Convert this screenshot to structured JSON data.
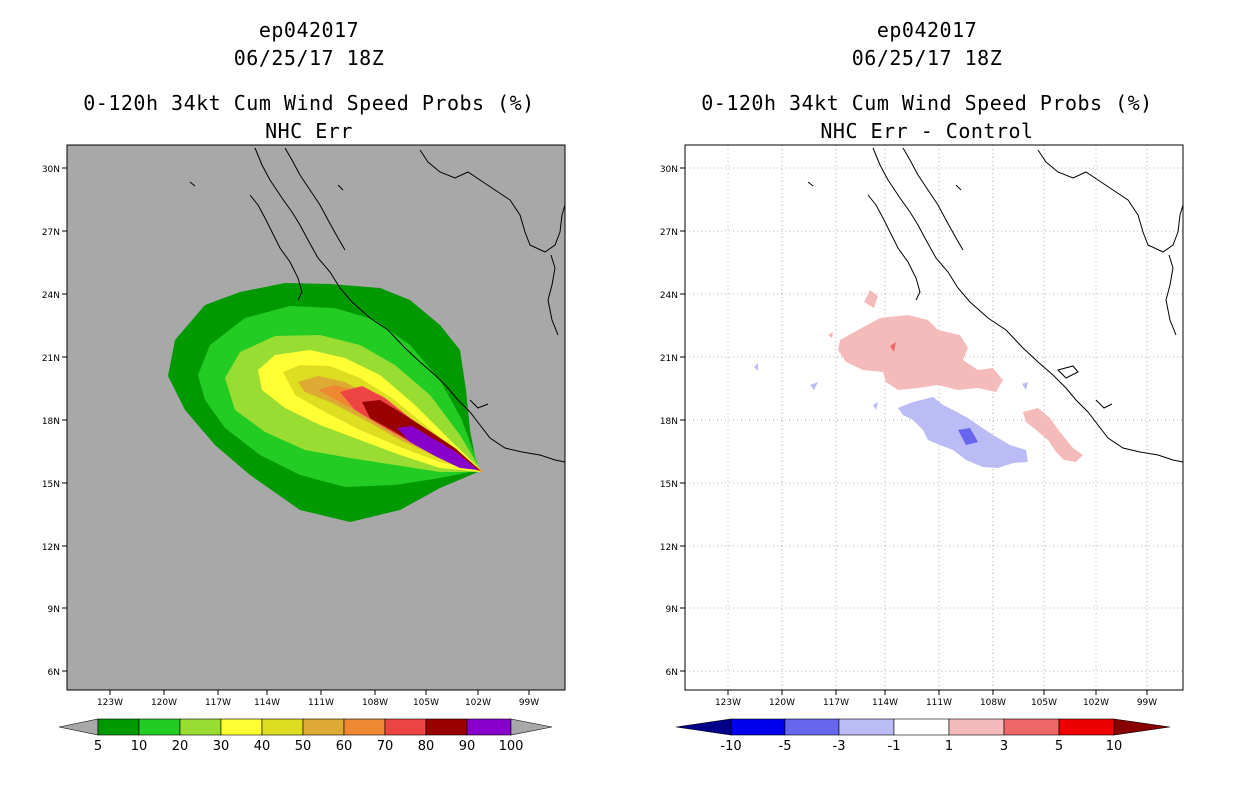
{
  "left": {
    "storm_id": "ep042017",
    "datetime": "06/25/17 18Z",
    "title": "0-120h 34kt Cum Wind Speed Probs (%)",
    "subtitle": "NHC Err",
    "lat_ticks": [
      "30N",
      "27N",
      "24N",
      "21N",
      "18N",
      "15N",
      "12N",
      "9N",
      "6N"
    ],
    "lon_ticks": [
      "123W",
      "120W",
      "117W",
      "114W",
      "111W",
      "108W",
      "105W",
      "102W",
      "99W"
    ],
    "colorbar_labels": [
      "5",
      "10",
      "20",
      "30",
      "40",
      "50",
      "60",
      "70",
      "80",
      "90",
      "100"
    ],
    "colorbar_colors": [
      "#009900",
      "#22cc22",
      "#99dd33",
      "#ffff33",
      "#dddd22",
      "#ddaa33",
      "#ee8833",
      "#ee4444",
      "#990000",
      "#8800cc"
    ],
    "background_color": "#a8a8a8"
  },
  "right": {
    "storm_id": "ep042017",
    "datetime": "06/25/17 18Z",
    "title": "0-120h 34kt Cum Wind Speed Probs (%)",
    "subtitle": "NHC Err - Control",
    "lat_ticks": [
      "30N",
      "27N",
      "24N",
      "21N",
      "18N",
      "15N",
      "12N",
      "9N",
      "6N"
    ],
    "lon_ticks": [
      "123W",
      "120W",
      "117W",
      "114W",
      "111W",
      "108W",
      "105W",
      "102W",
      "99W"
    ],
    "colorbar_labels": [
      "-10",
      "-5",
      "-3",
      "-1",
      "1",
      "3",
      "5",
      "10"
    ],
    "colorbar_colors": [
      "#000088",
      "#0000ee",
      "#6666ee",
      "#bbbbf5",
      "#ffffff",
      "#f5bbbb",
      "#ee6666",
      "#ee0000",
      "#880000"
    ]
  }
}
